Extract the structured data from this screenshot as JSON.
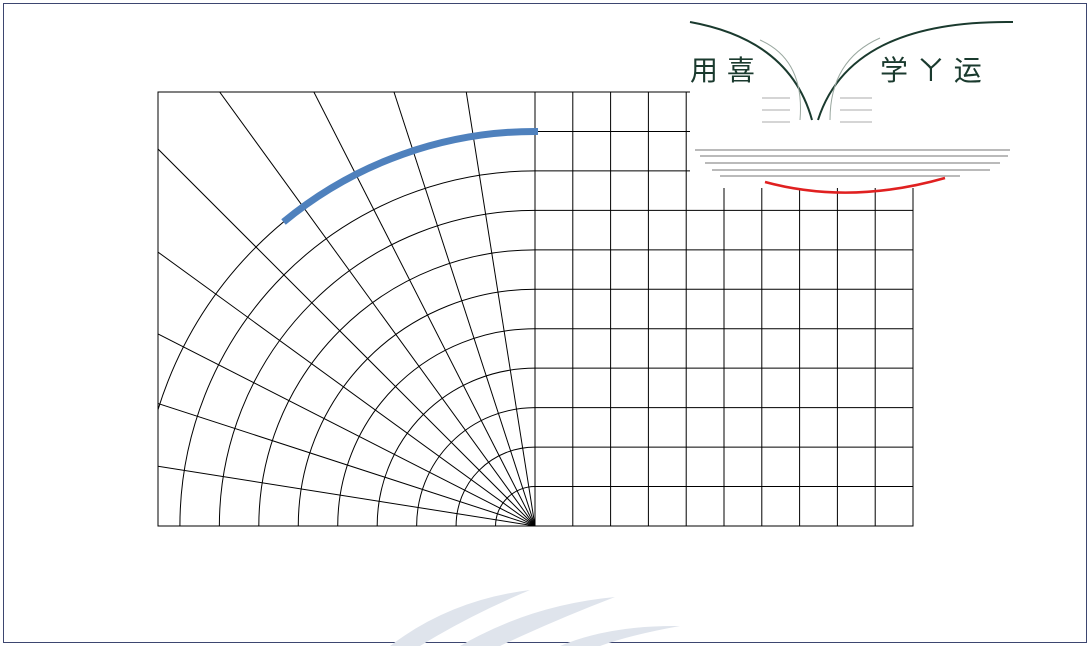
{
  "seal": {
    "text_left": "用 喜",
    "text_right": "学 ㄚ 运",
    "color": "#1a3a2e"
  },
  "grid": {
    "line_color": "#000000",
    "polar_radii_count": 10,
    "polar_spokes_count": 10,
    "rect_cols": 10,
    "rect_rows": 11
  },
  "accents": {
    "blue_arc_color": "#4f81bd",
    "red_arc_color": "#e02020",
    "watermark_color": "#dfe4ec"
  }
}
